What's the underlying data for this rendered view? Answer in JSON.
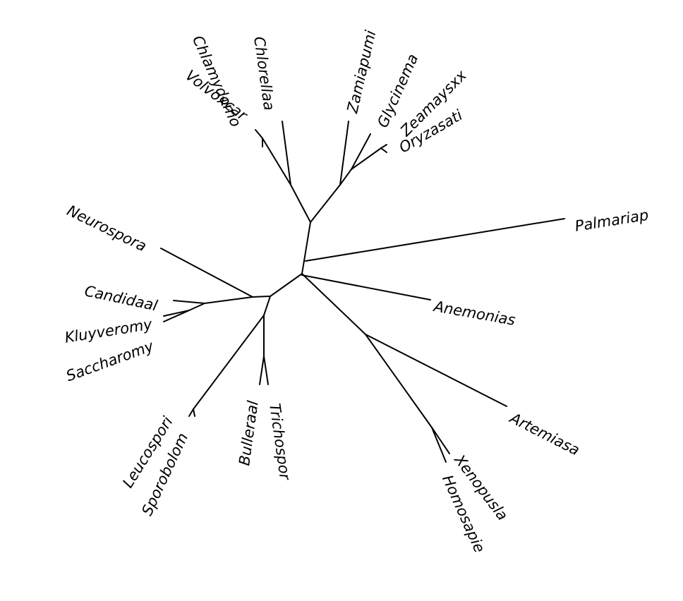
{
  "figure": {
    "type": "unrooted phylogenetic tree",
    "line_color": "#000000",
    "background": "#ffffff"
  },
  "taxa": [
    "Chlamydomo",
    "Volvoxcar",
    "Chlorellaa",
    "Zamiapumi",
    "Glycinema",
    "Zeamaysxx",
    "Oryzasati",
    "Palmariap",
    "Neurospora",
    "Candidaal",
    "Kluyveromy",
    "Saccharomy",
    "Anemonias",
    "Artemiasa",
    "Leucospori",
    "Sporobolom",
    "Bulleraal",
    "Trichospor",
    "Xenopusla",
    "Homosapie"
  ]
}
